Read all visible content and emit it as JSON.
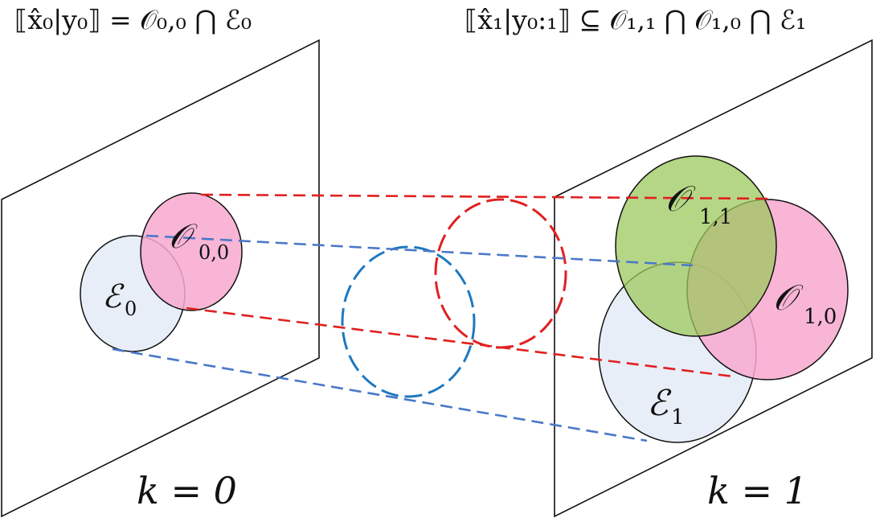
{
  "formulas": {
    "left": "⟦x̂₀|y₀⟧ = 𝒪₀,₀ ⋂ ℰ₀",
    "right": "⟦x̂₁|y₀:₁⟧ ⊆ 𝒪₁,₁ ⋂ 𝒪₁,₀ ⋂ ℰ₁"
  },
  "planes": {
    "left": {
      "label": "k = 0"
    },
    "right": {
      "label": "k = 1"
    }
  },
  "sets": {
    "E0": {
      "label": "ℰ",
      "sub": "0",
      "color": "#E8EEF8"
    },
    "O00": {
      "label": "𝒪",
      "sub": "0,0",
      "color": "#F7A8CF"
    },
    "O11": {
      "label": "𝒪",
      "sub": "1,1",
      "color": "#A5D06E"
    },
    "O10": {
      "label": "𝒪",
      "sub": "1,0",
      "color": "#F7A8CF"
    },
    "E1": {
      "label": "ℰ",
      "sub": "1",
      "color": "#E8EEF8"
    }
  },
  "colors": {
    "projection_red": "#E02020",
    "projection_blue": "#4A78C8",
    "middle_blue": "#1E78C0"
  }
}
